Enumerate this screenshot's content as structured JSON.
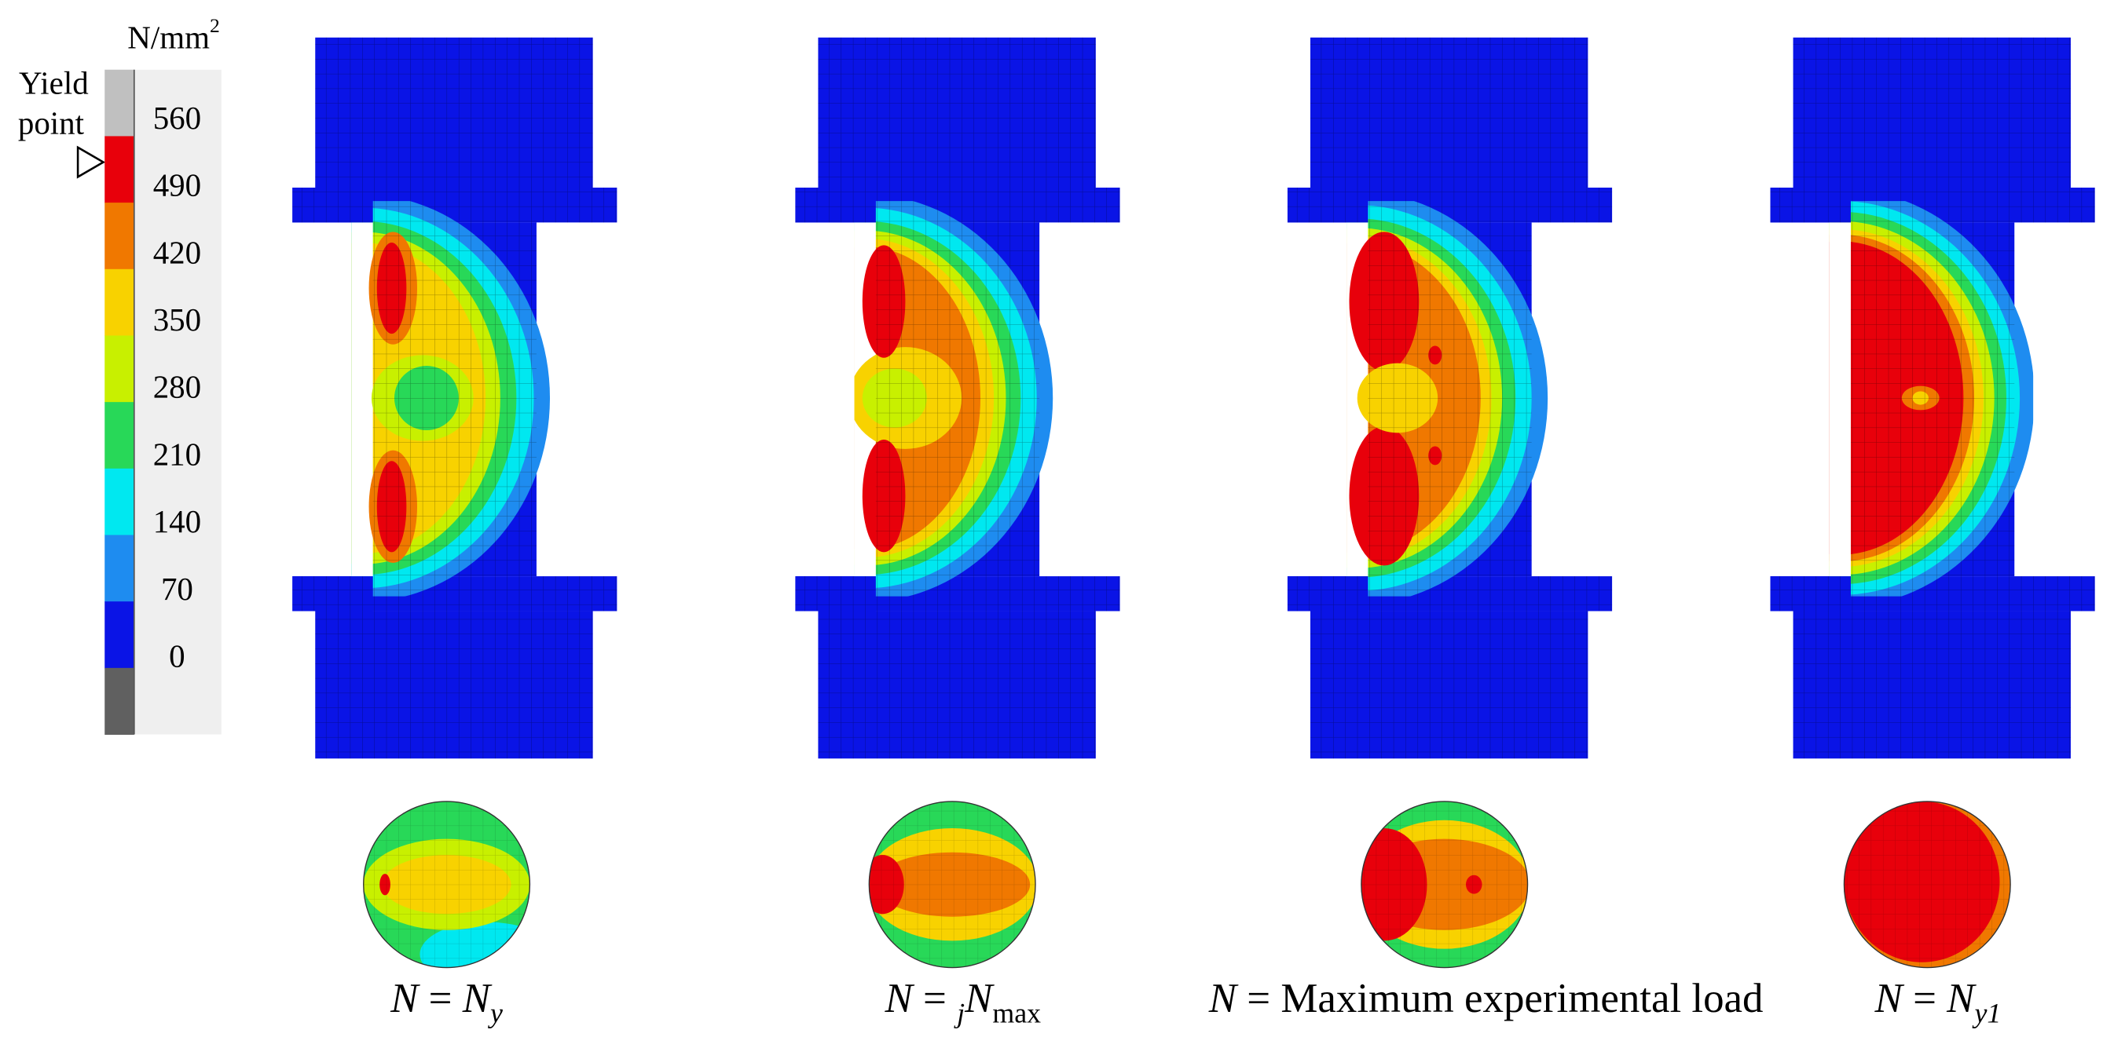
{
  "legend": {
    "unit": "N/mm",
    "unit_exponent": "2",
    "yield_label": [
      "Yield",
      "point"
    ],
    "labels": [
      560,
      490,
      420,
      350,
      280,
      210,
      140,
      70,
      0
    ],
    "colors": [
      "#c0c0c0",
      "#e8000b",
      "#f07800",
      "#f8d200",
      "#c8f000",
      "#28d858",
      "#00e8f0",
      "#1e8cf0",
      "#0a14e6",
      "#606060"
    ]
  },
  "specimens": [
    {
      "caption": [
        "N",
        " = ",
        "N",
        "y"
      ]
    },
    {
      "caption": [
        "N",
        " = ",
        "j",
        "N",
        "max"
      ]
    },
    {
      "caption": [
        "N",
        " = Maximum experimental load"
      ]
    },
    {
      "caption": [
        "N",
        " = ",
        "N",
        "y1"
      ]
    }
  ]
}
